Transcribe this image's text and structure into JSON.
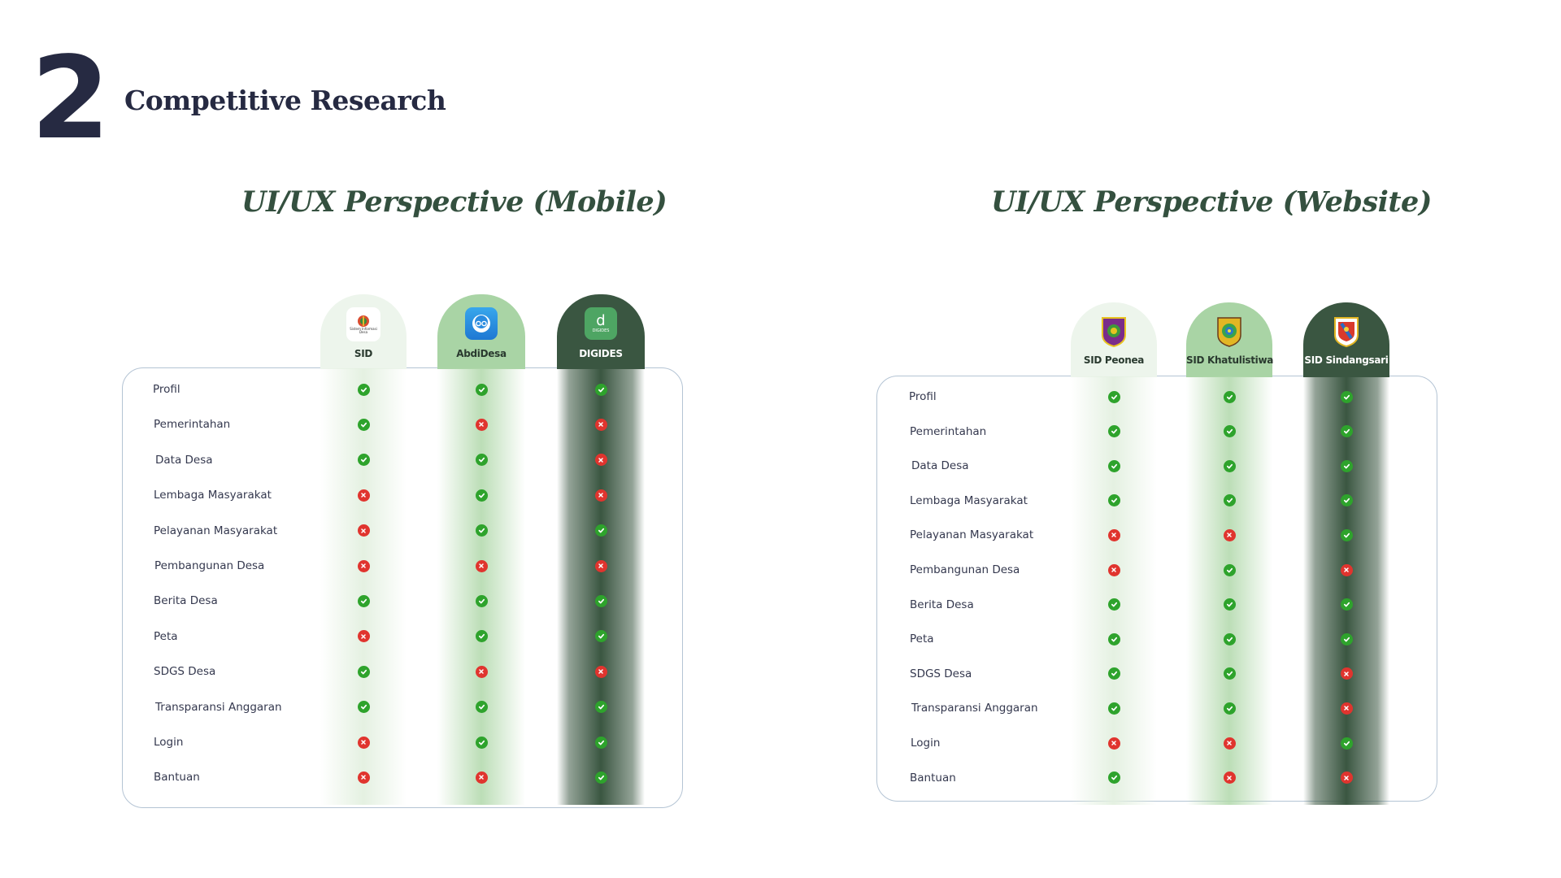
{
  "header": {
    "number": "2",
    "title": "Competitive Research"
  },
  "panels": [
    {
      "title": "UI/UX Perspective (Mobile)",
      "columns": [
        {
          "name": "SID",
          "logo_icon": "village-emblem-icon",
          "logo_text": "Sistem Informasi Desa"
        },
        {
          "name": "AbdiDesa",
          "logo_icon": "abdidesa-app-icon"
        },
        {
          "name": "DIGIDES",
          "logo_icon": "digides-app-icon",
          "logo_letter": "d",
          "logo_text": "DIGIDES"
        }
      ],
      "rows": [
        {
          "label": "Profil",
          "marks": [
            true,
            true,
            true
          ]
        },
        {
          "label": "Pemerintahan",
          "marks": [
            true,
            false,
            false
          ]
        },
        {
          "label": "Data Desa",
          "marks": [
            true,
            true,
            false
          ]
        },
        {
          "label": "Lembaga Masyarakat",
          "marks": [
            false,
            true,
            false
          ]
        },
        {
          "label": "Pelayanan Masyarakat",
          "marks": [
            false,
            true,
            true
          ]
        },
        {
          "label": "Pembangunan Desa",
          "marks": [
            false,
            false,
            false
          ]
        },
        {
          "label": "Berita Desa",
          "marks": [
            true,
            true,
            true
          ]
        },
        {
          "label": "Peta",
          "marks": [
            false,
            true,
            true
          ]
        },
        {
          "label": "SDGS Desa",
          "marks": [
            true,
            false,
            false
          ]
        },
        {
          "label": "Transparansi Anggaran",
          "marks": [
            true,
            true,
            true
          ]
        },
        {
          "label": "Login",
          "marks": [
            false,
            true,
            true
          ]
        },
        {
          "label": "Bantuan",
          "marks": [
            false,
            false,
            true
          ]
        }
      ]
    },
    {
      "title": "UI/UX Perspective (Website)",
      "columns": [
        {
          "name": "SID Peonea",
          "logo_icon": "peonea-emblem-icon"
        },
        {
          "name": "SID Khatulistiwa",
          "logo_icon": "khatulistiwa-emblem-icon"
        },
        {
          "name": "SID Sindangsari",
          "logo_icon": "sindangsari-emblem-icon"
        }
      ],
      "rows": [
        {
          "label": "Profil",
          "marks": [
            true,
            true,
            true
          ]
        },
        {
          "label": "Pemerintahan",
          "marks": [
            true,
            true,
            true
          ]
        },
        {
          "label": "Data Desa",
          "marks": [
            true,
            true,
            true
          ]
        },
        {
          "label": "Lembaga Masyarakat",
          "marks": [
            true,
            true,
            true
          ]
        },
        {
          "label": "Pelayanan Masyarakat",
          "marks": [
            false,
            false,
            true
          ]
        },
        {
          "label": "Pembangunan Desa",
          "marks": [
            false,
            true,
            false
          ]
        },
        {
          "label": "Berita Desa",
          "marks": [
            true,
            true,
            true
          ]
        },
        {
          "label": "Peta",
          "marks": [
            true,
            true,
            true
          ]
        },
        {
          "label": "SDGS Desa",
          "marks": [
            true,
            true,
            false
          ]
        },
        {
          "label": "Transparansi Anggaran",
          "marks": [
            true,
            true,
            false
          ]
        },
        {
          "label": "Login",
          "marks": [
            false,
            false,
            true
          ]
        },
        {
          "label": "Bantuan",
          "marks": [
            true,
            false,
            false
          ]
        }
      ]
    }
  ],
  "colors": {
    "check": "#2ea32c",
    "cross": "#e0342e",
    "highlight_dark": "#3a5641",
    "highlight_mid": "#a9d4a5",
    "highlight_light": "#edf5ec",
    "heading": "#262a42",
    "panel_title": "#34503f"
  }
}
